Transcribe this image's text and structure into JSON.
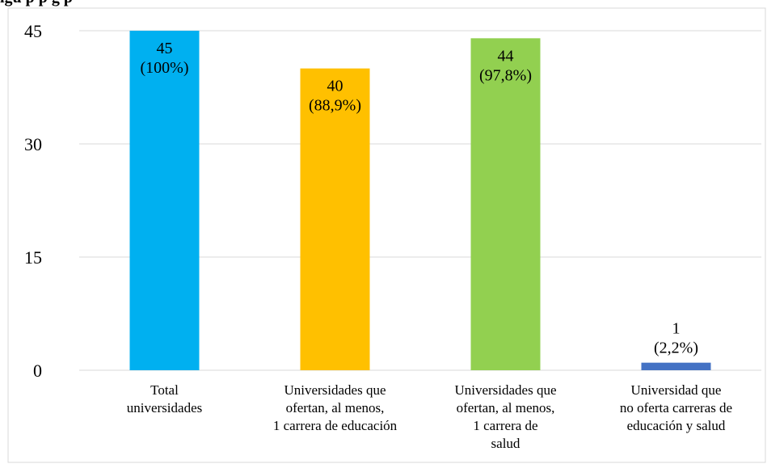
{
  "caption": "igu                           p   p              g    p   ",
  "chart_data": {
    "type": "bar",
    "title": "",
    "xlabel": "",
    "ylabel": "",
    "ylim": [
      0,
      45
    ],
    "yticks": [
      "0",
      "15",
      "30",
      "45"
    ],
    "grid": true,
    "legend": "none",
    "categories": [
      [
        "Total",
        "universidades"
      ],
      [
        "Universidades que",
        "ofertan, al menos,",
        "1 carrera de educación"
      ],
      [
        "Universidades que",
        "ofertan, al menos,",
        "1 carrera de",
        "salud"
      ],
      [
        "Universidad que",
        "no oferta carreras de",
        "educación y salud"
      ]
    ],
    "values": [
      45,
      40,
      44,
      1
    ],
    "labels": [
      [
        "45",
        "(100%)"
      ],
      [
        "40",
        "(88,9%)"
      ],
      [
        "44",
        "(97,8%)"
      ],
      [
        "1",
        "(2,2%)"
      ]
    ],
    "colors": [
      "#00b0f0",
      "#ffc000",
      "#92d050",
      "#4472c4"
    ]
  }
}
